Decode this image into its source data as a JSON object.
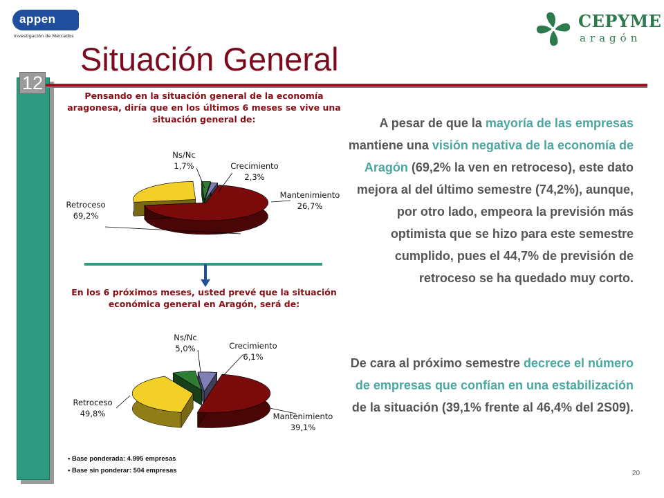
{
  "header": {
    "logo_left": {
      "wordmark": "appen",
      "subtitle": "Investigación de Mercados"
    },
    "logo_right": {
      "wordmark": "CEPYME",
      "subtitle": "aragón"
    },
    "page_badge": "12",
    "title": "Situación General"
  },
  "colors": {
    "title": "#7b0a1e",
    "rule": "#a60f20",
    "sidebar": "#2e9a80",
    "question": "#8a0e16",
    "highlight": "#4aa8a0",
    "body": "#555555"
  },
  "chart_data": [
    {
      "type": "pie",
      "title": "Pensando en la situación general de la economía aragonesa, diría que en los últimos 6 meses se vive una situación general de:",
      "style": "3d-exploded",
      "slices": [
        {
          "label": "Ns/Nc",
          "value_label": "1,7%",
          "value": 1.7,
          "color": "#7f7fb5"
        },
        {
          "label": "Crecimiento",
          "value_label": "2,3%",
          "value": 2.3,
          "color": "#2e7d32"
        },
        {
          "label": "Mantenimiento",
          "value_label": "26,7%",
          "value": 26.7,
          "color": "#f2d028"
        },
        {
          "label": "Retroceso",
          "value_label": "69,2%",
          "value": 69.2,
          "color": "#7b0a0a"
        }
      ]
    },
    {
      "type": "pie",
      "title": "En los 6 próximos meses, usted prevé que la situación económica general en Aragón, será de:",
      "style": "3d-exploded",
      "slices": [
        {
          "label": "Ns/Nc",
          "value_label": "5,0%",
          "value": 5.0,
          "color": "#7f7fb5"
        },
        {
          "label": "Crecimiento",
          "value_label": "6,1%",
          "value": 6.1,
          "color": "#2e7d32"
        },
        {
          "label": "Mantenimiento",
          "value_label": "39,1%",
          "value": 39.1,
          "color": "#f2d028"
        },
        {
          "label": "Retroceso",
          "value_label": "49,8%",
          "value": 49.8,
          "color": "#7b0a0a"
        }
      ]
    }
  ],
  "footnotes": [
    "• Base ponderada: 4.995 empresas",
    "• Base sin ponderar: 504 empresas"
  ],
  "page_number": "20",
  "paragraphs": [
    [
      {
        "t": "A pesar de que la ",
        "h": false
      },
      {
        "t": "mayoría de las empresas",
        "h": true
      },
      {
        "t": " mantiene una ",
        "h": false
      },
      {
        "t": "visión negativa de la economía de Aragón",
        "h": true
      },
      {
        "t": " (69,2% la ven en retroceso), este dato mejora al del último semestre (74,2%), aunque, por otro lado, empeora la previsión más optimista que se hizo para este semestre cumplido, pues el 44,7% de previsión de retroceso se ha quedado muy corto.",
        "h": false
      }
    ],
    [
      {
        "t": "De cara al próximo semestre ",
        "h": false
      },
      {
        "t": "decrece el número de empresas que confían en una estabilización",
        "h": true
      },
      {
        "t": " de la situación (39,1% frente al 46,4% del 2S09).",
        "h": false
      }
    ]
  ]
}
